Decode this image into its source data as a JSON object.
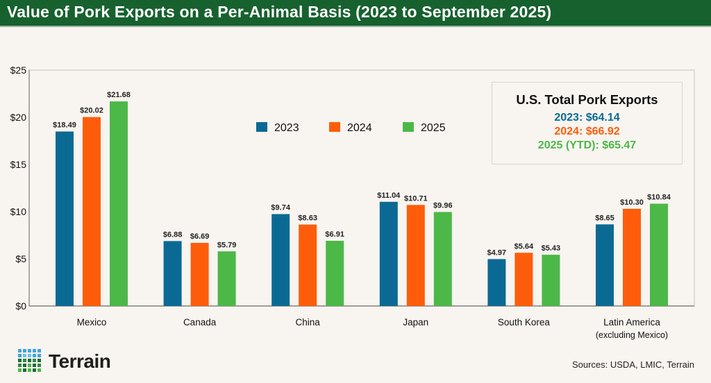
{
  "title": "Value of Pork Exports on a Per-Animal Basis (2023 to September 2025)",
  "chart_data": {
    "type": "bar",
    "title": "Value of Pork Exports on a Per-Animal Basis (2023 to September 2025)",
    "categories": [
      "Mexico",
      "Canada",
      "China",
      "Japan",
      "South Korea",
      "Latin America"
    ],
    "category_sublabels": [
      "",
      "",
      "",
      "",
      "",
      "(excluding Mexico)"
    ],
    "series": [
      {
        "name": "2023",
        "color": "#0b6a94",
        "values": [
          18.49,
          6.88,
          9.74,
          11.04,
          4.97,
          8.65
        ],
        "labels": [
          "$18.49",
          "$6.88",
          "$9.74",
          "$11.04",
          "$4.97",
          "$8.65"
        ]
      },
      {
        "name": "2024",
        "color": "#fd5d0a",
        "values": [
          20.02,
          6.69,
          8.63,
          10.71,
          5.64,
          10.3
        ],
        "labels": [
          "$20.02",
          "$6.69",
          "$8.63",
          "$10.71",
          "$5.64",
          "$10.30"
        ]
      },
      {
        "name": "2025",
        "color": "#4cb848",
        "values": [
          21.68,
          5.79,
          6.91,
          9.96,
          5.43,
          10.84
        ],
        "labels": [
          "$21.68",
          "$5.79",
          "$6.91",
          "$9.96",
          "$5.43",
          "$10.84"
        ]
      }
    ],
    "ylim": [
      0,
      25
    ],
    "yticks": [
      "$0",
      "$5",
      "$10",
      "$15",
      "$20",
      "$25"
    ],
    "ytick_values": [
      0,
      5,
      10,
      15,
      20,
      25
    ],
    "grid": false,
    "legend": "top-center",
    "xlabel": "",
    "ylabel": ""
  },
  "totals": {
    "heading": "U.S. Total Pork Exports",
    "lines": [
      {
        "text": "2023: $64.14",
        "color": "#0b6a94"
      },
      {
        "text": "2024: $66.92",
        "color": "#fd5d0a"
      },
      {
        "text": "2025 (YTD): $65.47",
        "color": "#4cb848"
      }
    ]
  },
  "logo": {
    "text": "Terrain"
  },
  "source": "Sources: USDA, LMIC, Terrain"
}
